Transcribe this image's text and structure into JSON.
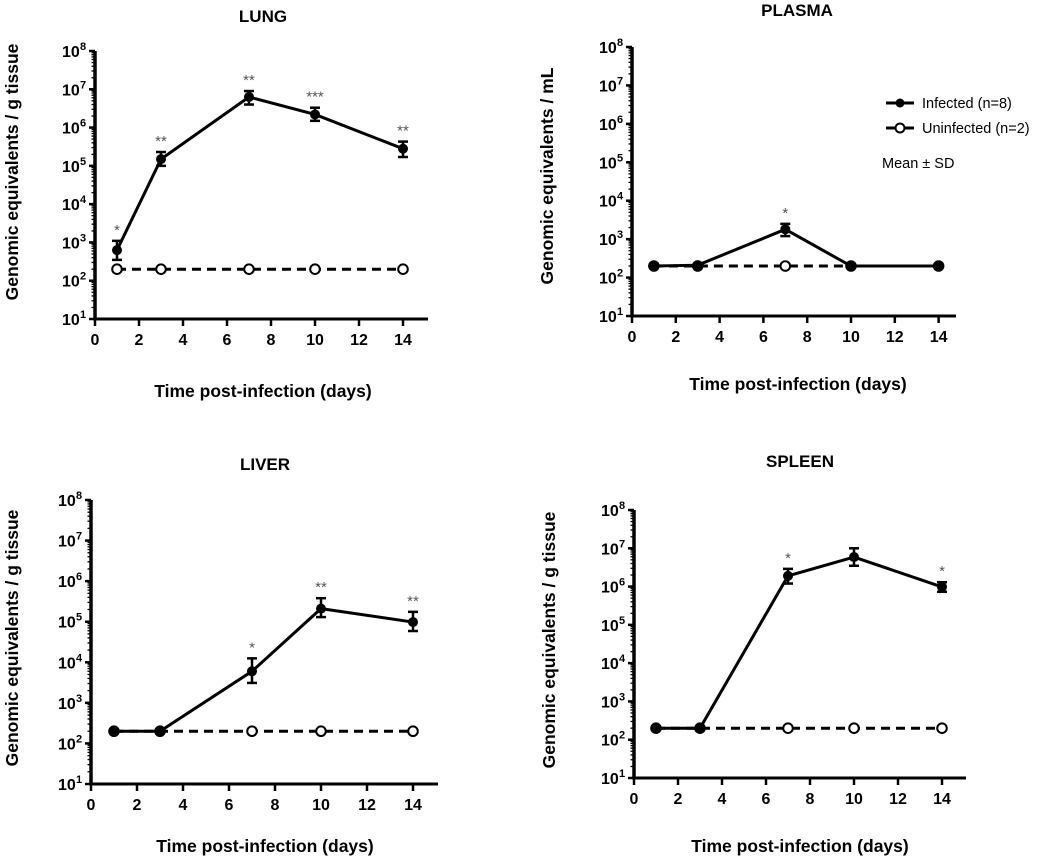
{
  "legend": {
    "infected_label": "Infected (n=8)",
    "uninfected_label": "Uninfected (n=2)",
    "note": "Mean ± SD"
  },
  "chart_data": [
    {
      "type": "line",
      "title": "LUNG",
      "xlabel": "Time post-infection (days)",
      "ylabel": "Genomic equivalents / g tissue",
      "yscale": "log",
      "ylim": [
        10,
        100000000
      ],
      "xlim": [
        0,
        15
      ],
      "xticks": [
        0,
        2,
        4,
        6,
        8,
        10,
        12,
        14
      ],
      "yticks": [
        1,
        2,
        3,
        4,
        5,
        6,
        7,
        8
      ],
      "x": [
        1,
        3,
        7,
        10,
        14
      ],
      "series": [
        {
          "name": "Infected (n=8)",
          "values": [
            630,
            150000,
            6300000,
            2200000,
            280000
          ],
          "err_low": [
            350,
            100000,
            4000000,
            1500000,
            170000
          ],
          "err_high": [
            1100,
            230000,
            9000000,
            3300000,
            430000
          ],
          "significance": [
            "*",
            "**",
            "**",
            "***",
            "**"
          ]
        },
        {
          "name": "Uninfected (n=2)",
          "values": [
            200,
            200,
            200,
            200,
            200
          ]
        }
      ]
    },
    {
      "type": "line",
      "title": "PLASMA",
      "xlabel": "Time post-infection (days)",
      "ylabel": "Genomic equivalents / mL",
      "yscale": "log",
      "ylim": [
        10,
        100000000
      ],
      "xlim": [
        0,
        15
      ],
      "xticks": [
        0,
        2,
        4,
        6,
        8,
        10,
        12,
        14
      ],
      "yticks": [
        1,
        2,
        3,
        4,
        5,
        6,
        7,
        8
      ],
      "x": [
        1,
        3,
        7,
        10,
        14
      ],
      "series": [
        {
          "name": "Infected (n=8)",
          "values": [
            200,
            210,
            1800,
            200,
            200
          ],
          "err_low": [
            200,
            210,
            1200,
            200,
            200
          ],
          "err_high": [
            200,
            210,
            2500,
            200,
            200
          ],
          "significance": [
            "",
            "",
            "*",
            "",
            ""
          ]
        },
        {
          "name": "Uninfected (n=2)",
          "values": [
            200,
            200,
            200,
            200,
            200
          ]
        }
      ],
      "legend_position": "top-right"
    },
    {
      "type": "line",
      "title": "LIVER",
      "xlabel": "Time post-infection (days)",
      "ylabel": "Genomic equivalents / g tissue",
      "yscale": "log",
      "ylim": [
        10,
        100000000
      ],
      "xlim": [
        0,
        15
      ],
      "xticks": [
        0,
        2,
        4,
        6,
        8,
        10,
        12,
        14
      ],
      "yticks": [
        1,
        2,
        3,
        4,
        5,
        6,
        7,
        8
      ],
      "x": [
        1,
        3,
        7,
        10,
        14
      ],
      "series": [
        {
          "name": "Infected (n=8)",
          "values": [
            200,
            200,
            6000,
            210000,
            98000
          ],
          "err_low": [
            200,
            200,
            3100,
            130000,
            59000
          ],
          "err_high": [
            200,
            200,
            12500,
            380000,
            175000
          ],
          "significance": [
            "",
            "",
            "*",
            "**",
            "**"
          ]
        },
        {
          "name": "Uninfected (n=2)",
          "values": [
            200,
            200,
            200,
            200,
            200
          ]
        }
      ]
    },
    {
      "type": "line",
      "title": "SPLEEN",
      "xlabel": "Time post-infection (days)",
      "ylabel": "Genomic equivalents / g tissue",
      "yscale": "log",
      "ylim": [
        10,
        100000000
      ],
      "xlim": [
        0,
        15
      ],
      "xticks": [
        0,
        2,
        4,
        6,
        8,
        10,
        12,
        14
      ],
      "yticks": [
        1,
        2,
        3,
        4,
        5,
        6,
        7,
        8
      ],
      "x": [
        1,
        3,
        7,
        10,
        14
      ],
      "series": [
        {
          "name": "Infected (n=8)",
          "values": [
            200,
            200,
            1900000,
            5900000,
            980000
          ],
          "err_low": [
            200,
            200,
            1200000,
            3500000,
            730000
          ],
          "err_high": [
            200,
            200,
            2900000,
            10000000,
            1300000
          ],
          "significance": [
            "",
            "",
            "*",
            "",
            "*"
          ]
        },
        {
          "name": "Uninfected (n=2)",
          "values": [
            200,
            200,
            200,
            200,
            200
          ]
        }
      ]
    }
  ]
}
